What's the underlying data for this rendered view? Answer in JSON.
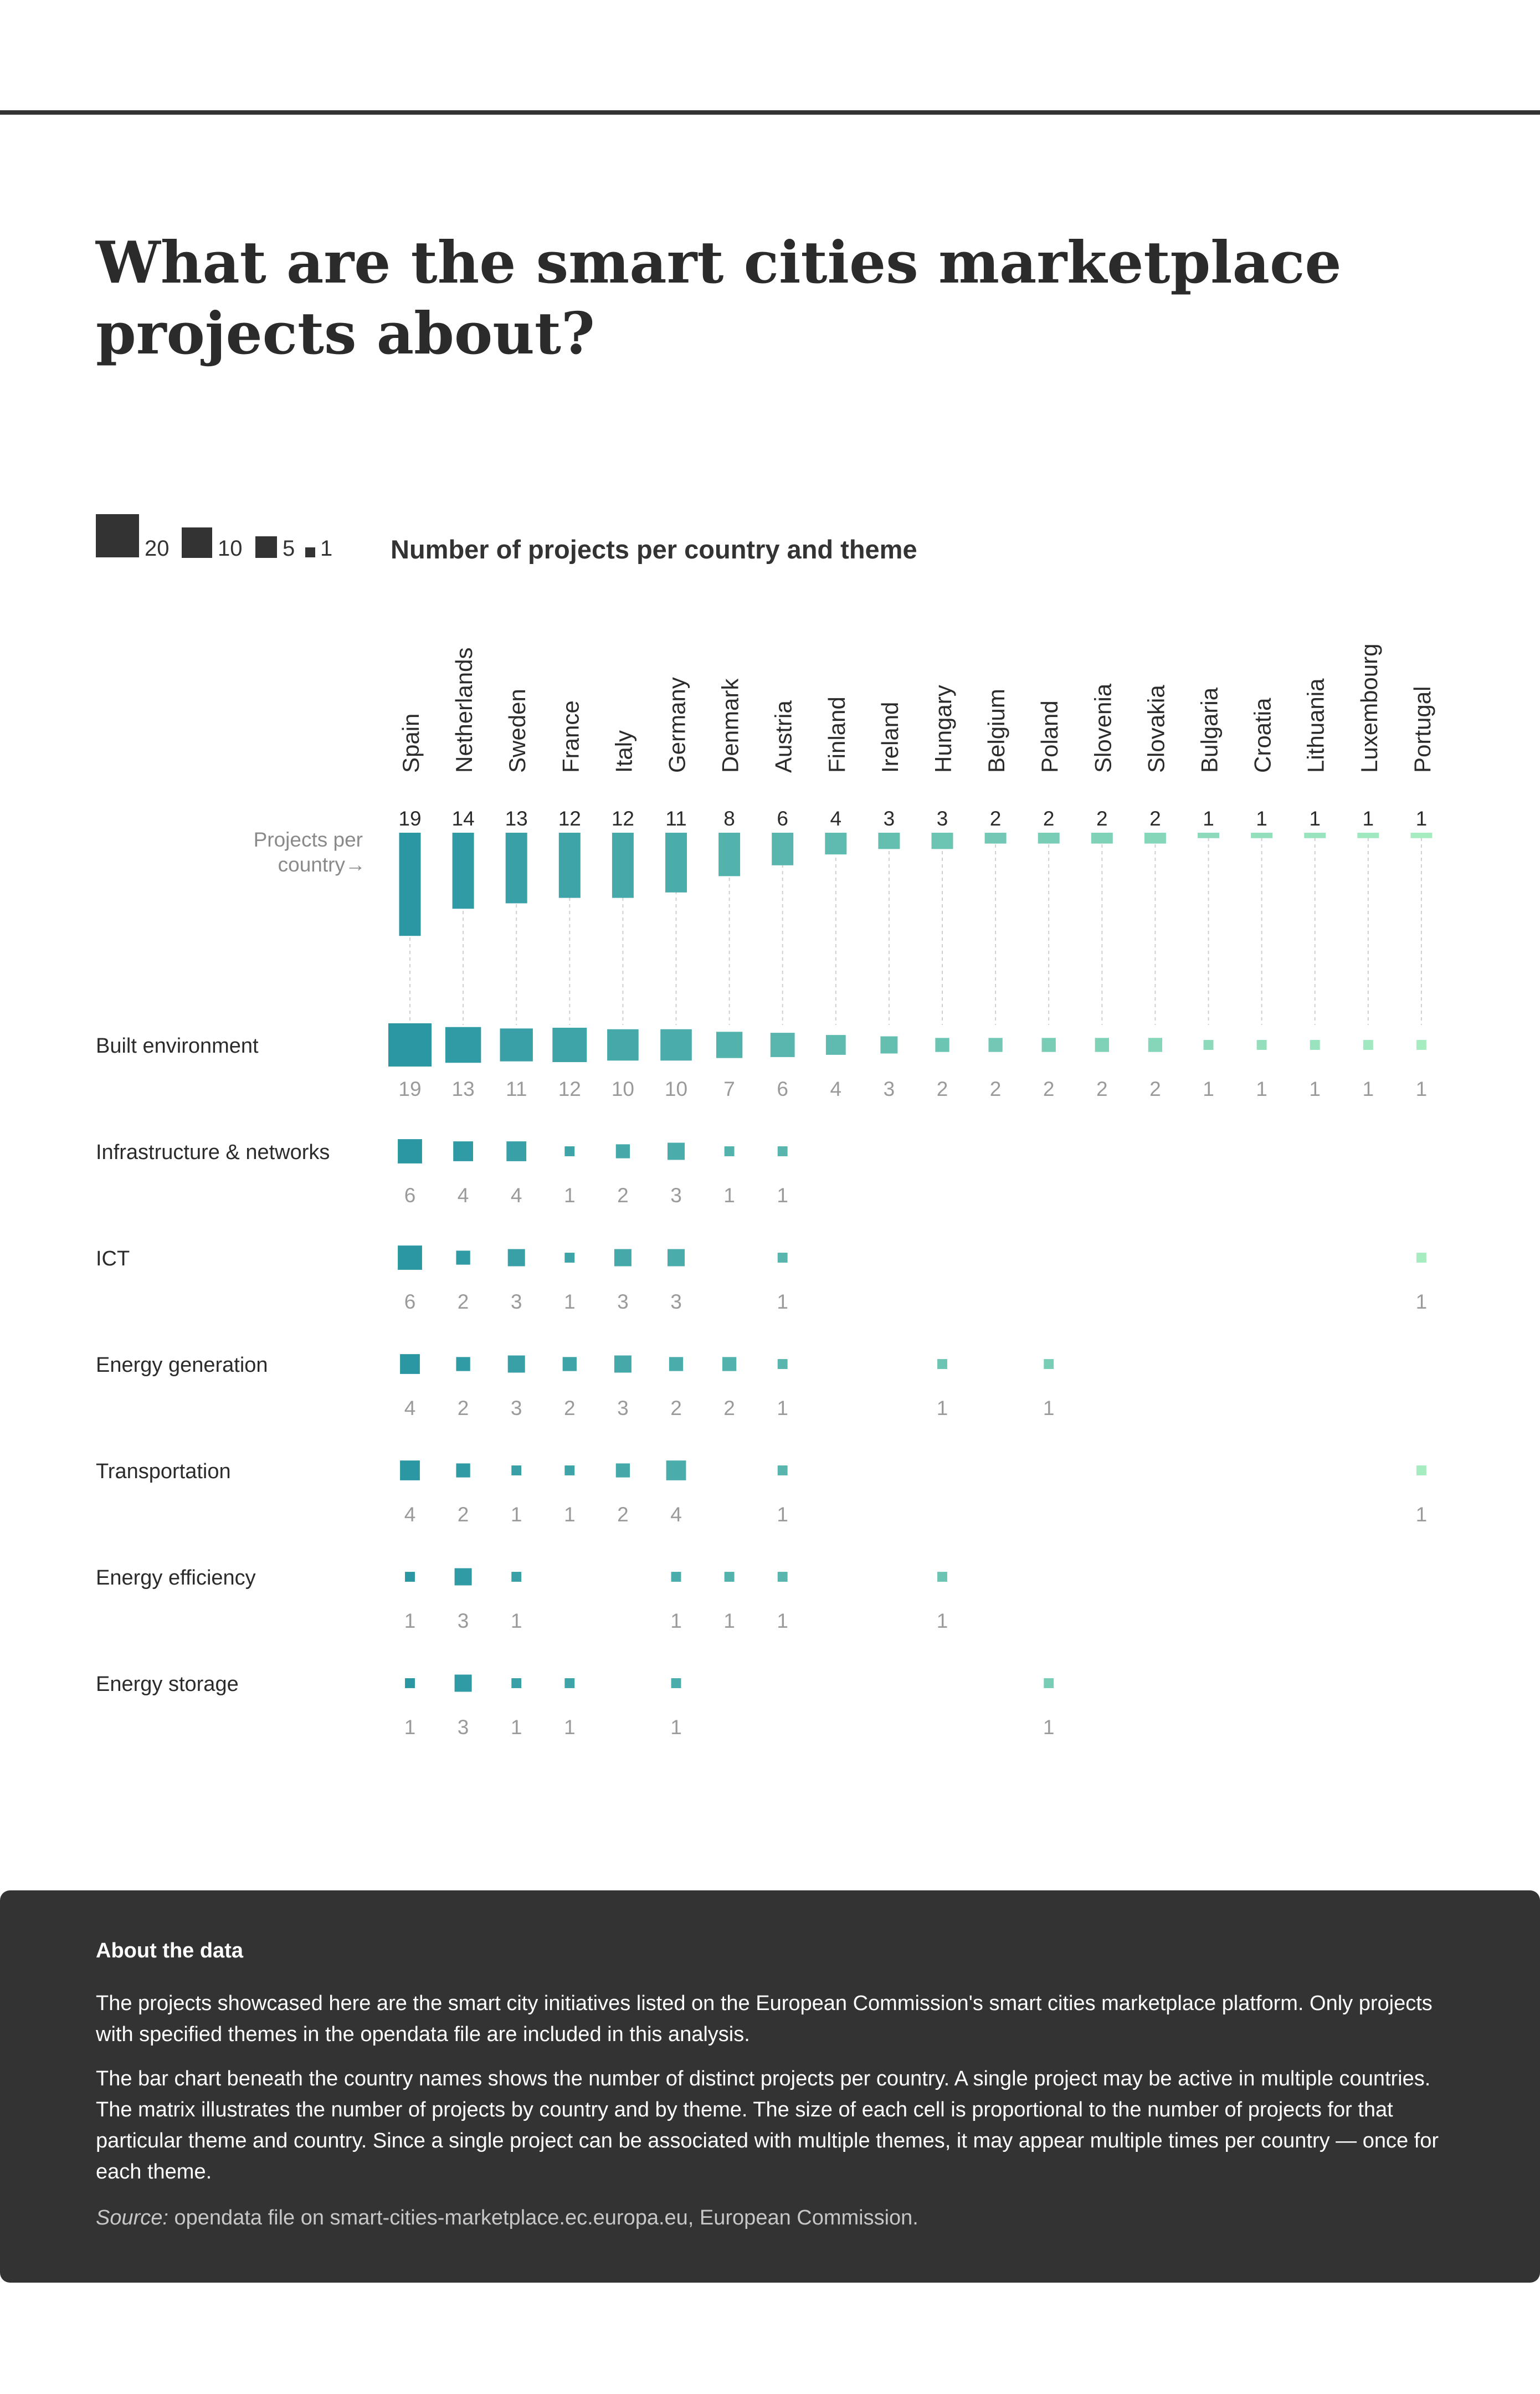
{
  "title": "What are the smart cities marketplace projects about?",
  "legend": {
    "sizes": [
      20,
      10,
      5,
      1
    ],
    "labels": [
      "20",
      "10",
      "5",
      "1"
    ]
  },
  "subtitle": "Number of projects per country and theme",
  "projects_label": "Projects per country→",
  "colors": {
    "dark": "#2b97a3",
    "light": "#a6ecc1",
    "text": "#2b2b2b",
    "muted": "#9a9a9a",
    "box": "#333333"
  },
  "chart_data": {
    "type": "heatmap",
    "countries": [
      "Spain",
      "Netherlands",
      "Sweden",
      "France",
      "Italy",
      "Germany",
      "Denmark",
      "Austria",
      "Finland",
      "Ireland",
      "Hungary",
      "Belgium",
      "Poland",
      "Slovenia",
      "Slovakia",
      "Bulgaria",
      "Croatia",
      "Lithuania",
      "Luxembourg",
      "Portugal"
    ],
    "projects_per_country": [
      19,
      14,
      13,
      12,
      12,
      11,
      8,
      6,
      4,
      3,
      3,
      2,
      2,
      2,
      2,
      1,
      1,
      1,
      1,
      1
    ],
    "themes": [
      {
        "name": "Built environment",
        "values": [
          19,
          13,
          11,
          12,
          10,
          10,
          7,
          6,
          4,
          3,
          2,
          2,
          2,
          2,
          2,
          1,
          1,
          1,
          1,
          1
        ]
      },
      {
        "name": "Infrastructure & networks",
        "values": [
          6,
          4,
          4,
          1,
          2,
          3,
          1,
          1,
          null,
          null,
          null,
          null,
          null,
          null,
          null,
          null,
          null,
          null,
          null,
          null
        ]
      },
      {
        "name": "ICT",
        "values": [
          6,
          2,
          3,
          1,
          3,
          3,
          null,
          1,
          null,
          null,
          null,
          null,
          null,
          null,
          null,
          null,
          null,
          null,
          null,
          1
        ]
      },
      {
        "name": "Energy generation",
        "values": [
          4,
          2,
          3,
          2,
          3,
          2,
          2,
          1,
          null,
          null,
          1,
          null,
          1,
          null,
          null,
          null,
          null,
          null,
          null,
          null
        ]
      },
      {
        "name": "Transportation",
        "values": [
          4,
          2,
          1,
          1,
          2,
          4,
          null,
          1,
          null,
          null,
          null,
          null,
          null,
          null,
          null,
          null,
          null,
          null,
          null,
          1
        ]
      },
      {
        "name": "Energy efficiency",
        "values": [
          1,
          3,
          1,
          null,
          null,
          1,
          1,
          1,
          null,
          null,
          1,
          null,
          null,
          null,
          null,
          null,
          null,
          null,
          null,
          null
        ]
      },
      {
        "name": "Energy storage",
        "values": [
          1,
          3,
          1,
          1,
          null,
          1,
          null,
          null,
          null,
          null,
          null,
          null,
          1,
          null,
          null,
          null,
          null,
          null,
          null,
          null
        ]
      }
    ]
  },
  "about": {
    "heading": "About the data",
    "p1": "The projects showcased here are the smart city initiatives listed on the European Commission's smart cities marketplace platform. Only projects with specified themes in the opendata file are included in this analysis.",
    "p2": "The bar chart beneath the country names shows the number of distinct projects per country. A single project may be active in multiple countries. The matrix  illustrates the number of projects by country and by theme. The size of each cell is proportional to the number of projects for that particular theme and country. Since a single project can be associated with multiple themes, it may appear multiple times per country — once for each theme.",
    "source_label": "Source:",
    "source_text": " opendata file on smart-cities-marketplace.ec.europa.eu, European Commission."
  }
}
